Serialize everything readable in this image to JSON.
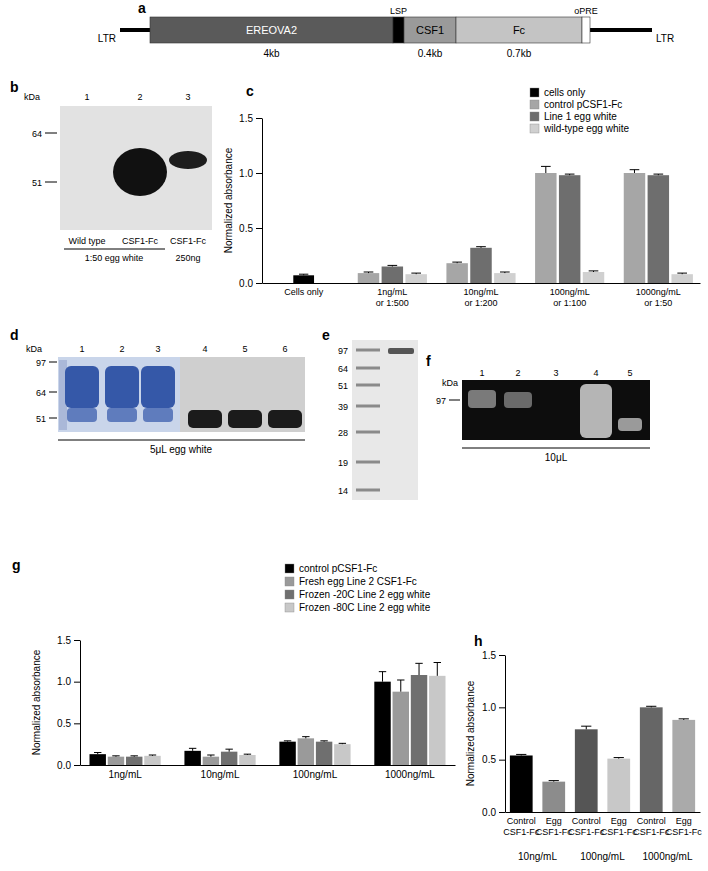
{
  "chart_data": [
    {
      "panel": "c",
      "type": "bar",
      "y_label": "Normalized absorbance",
      "categories": [
        "Cells only",
        "1ng/mL or 1:500",
        "10ng/mL or 1:200",
        "100ng/mL or 1:100",
        "1000ng/mL or 1:50"
      ],
      "series": [
        {
          "name": "cells only",
          "color": "#000000",
          "values": [
            0.07,
            null,
            null,
            null,
            null
          ],
          "errors": [
            0.01,
            null,
            null,
            null,
            null
          ]
        },
        {
          "name": "control pCSF1-Fc",
          "color": "#a6a6a6",
          "values": [
            null,
            0.09,
            0.18,
            1.0,
            1.0
          ],
          "errors": [
            null,
            0.01,
            0.01,
            0.06,
            0.03
          ]
        },
        {
          "name": "Line 1 egg white",
          "color": "#6e6e6e",
          "values": [
            null,
            0.15,
            0.32,
            0.98,
            0.98
          ],
          "errors": [
            null,
            0.01,
            0.01,
            0.01,
            0.01
          ]
        },
        {
          "name": "wild-type egg white",
          "color": "#d0d0d0",
          "values": [
            null,
            0.08,
            0.09,
            0.1,
            0.08
          ],
          "errors": [
            null,
            0.01,
            0.01,
            0.01,
            0.01
          ]
        }
      ],
      "ylim": [
        0,
        1.5
      ],
      "yticks": [
        {
          "value": 0,
          "label": "0.0"
        },
        {
          "value": 0.5,
          "label": "0.5"
        },
        {
          "value": 1,
          "label": "1.0"
        },
        {
          "value": 1.5,
          "label": "1.5"
        }
      ],
      "legend": "top-right"
    },
    {
      "panel": "g",
      "type": "bar",
      "y_label": "Normalized absorbance",
      "categories": [
        "1ng/mL",
        "10ng/mL",
        "100ng/mL",
        "1000ng/mL"
      ],
      "series": [
        {
          "name": "control pCSF1-Fc",
          "color": "#000000",
          "values": [
            0.13,
            0.17,
            0.28,
            1.0
          ],
          "errors": [
            0.02,
            0.03,
            0.01,
            0.12
          ]
        },
        {
          "name": "Fresh egg Line 2 CSF1-Fc",
          "color": "#9a9a9a",
          "values": [
            0.1,
            0.1,
            0.32,
            0.88
          ],
          "errors": [
            0.01,
            0.02,
            0.02,
            0.14
          ]
        },
        {
          "name": "Frozen -20C Line 2 egg white",
          "color": "#6f6f6f",
          "values": [
            0.1,
            0.16,
            0.28,
            1.08
          ],
          "errors": [
            0.01,
            0.03,
            0.01,
            0.14
          ]
        },
        {
          "name": "Frozen -80C Line 2 egg white",
          "color": "#c8c8c8",
          "values": [
            0.11,
            0.12,
            0.25,
            1.07
          ],
          "errors": [
            0.01,
            0.01,
            0.01,
            0.16
          ]
        }
      ],
      "ylim": [
        0,
        1.5
      ],
      "yticks": [
        {
          "value": 0,
          "label": "0.0"
        },
        {
          "value": 0.5,
          "label": "0.5"
        },
        {
          "value": 1,
          "label": "1.0"
        },
        {
          "value": 1.5,
          "label": "1.5"
        }
      ],
      "legend": "top-right"
    },
    {
      "panel": "h",
      "type": "bar",
      "y_label": "Normalized absorbance",
      "categories": [
        "Control CSF1-Fc",
        "Egg CSF1-Fc",
        "Control CSF1-Fc",
        "Egg CSF1-Fc",
        "Control CSF1-Fc",
        "Egg CSF1-Fc"
      ],
      "groups": [
        "10ng/mL",
        "100ng/mL",
        "1000ng/mL"
      ],
      "values": [
        0.54,
        0.29,
        0.79,
        0.51,
        1.0,
        0.88
      ],
      "errors": [
        0.01,
        0.01,
        0.03,
        0.01,
        0.01,
        0.01
      ],
      "colors": [
        "#000000",
        "#8c8c8c",
        "#555555",
        "#c8c8c8",
        "#666666",
        "#aaaaaa"
      ],
      "ylim": [
        0,
        1.5
      ],
      "yticks": [
        {
          "value": 0,
          "label": "0.0"
        },
        {
          "value": 0.5,
          "label": "0.5"
        },
        {
          "value": 1,
          "label": "1.0"
        },
        {
          "value": 1.5,
          "label": "1.5"
        }
      ]
    }
  ],
  "construct": {
    "panel": "a",
    "left_end": "LTR",
    "right_end": "LTR",
    "segments": [
      {
        "label": "EREOVA2",
        "size": "4kb"
      },
      {
        "label": "LSP"
      },
      {
        "label": "CSF1",
        "size": "0.4kb"
      },
      {
        "label": "Fc",
        "size": "0.7kb"
      },
      {
        "label": "oPRE"
      }
    ]
  },
  "blots": [
    {
      "panel": "b",
      "unit": "kDa",
      "lanes": [
        "1",
        "2",
        "3"
      ],
      "markers": [
        64,
        51
      ],
      "captions": [
        "Wild type",
        "CSF1-Fc",
        "CSF1-Fc"
      ],
      "conditions": [
        "1:50 egg white",
        "250ng"
      ]
    },
    {
      "panel": "d",
      "unit": "kDa",
      "lanes": [
        "1",
        "2",
        "3",
        "4",
        "5",
        "6"
      ],
      "markers": [
        97,
        64,
        51
      ],
      "caption": "5μL egg white"
    },
    {
      "panel": "e",
      "markers": [
        97,
        64,
        51,
        39,
        28,
        19,
        14
      ]
    },
    {
      "panel": "f",
      "unit": "kDa",
      "lanes": [
        "1",
        "2",
        "3",
        "4",
        "5"
      ],
      "markers": [
        97
      ],
      "caption": "10μL"
    }
  ]
}
